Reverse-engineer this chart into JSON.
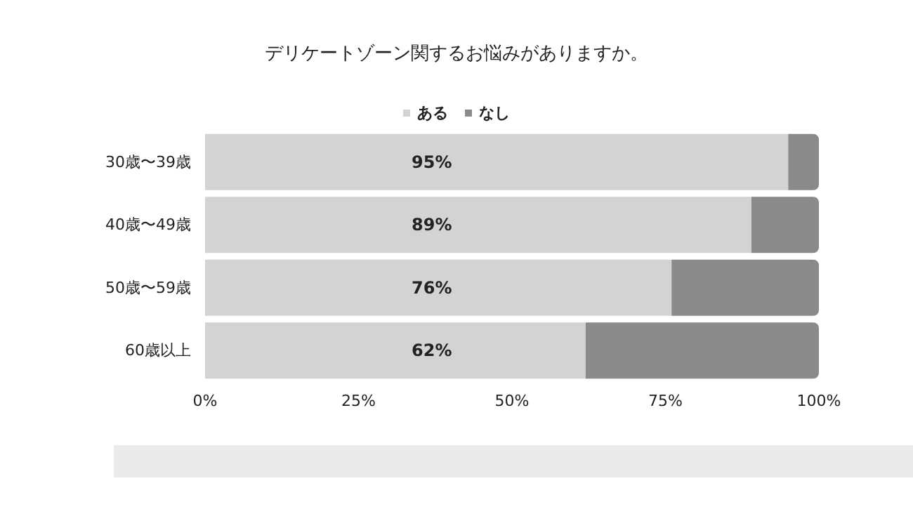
{
  "chart_data": {
    "type": "bar",
    "title": "デリケートゾーン関するお悩みがありますか。",
    "orientation": "horizontal",
    "stacked": true,
    "categories": [
      "30歳〜39歳",
      "40歳〜49歳",
      "50歳〜59歳",
      "60歳以上"
    ],
    "series": [
      {
        "name": "ある",
        "color": "#d3d3d3",
        "values": [
          95,
          89,
          76,
          62
        ],
        "value_labels": [
          "95%",
          "89%",
          "76%",
          "62%"
        ]
      },
      {
        "name": "なし",
        "color": "#8a8a8a",
        "values": [
          5,
          11,
          24,
          38
        ]
      }
    ],
    "xlim": [
      0,
      100
    ],
    "xticks": [
      {
        "value": 0,
        "label": "0%"
      },
      {
        "value": 25,
        "label": "25%"
      },
      {
        "value": 50,
        "label": "50%"
      },
      {
        "value": 75,
        "label": "75%"
      },
      {
        "value": 100,
        "label": "100%"
      }
    ],
    "grid": false,
    "legend": "top"
  }
}
